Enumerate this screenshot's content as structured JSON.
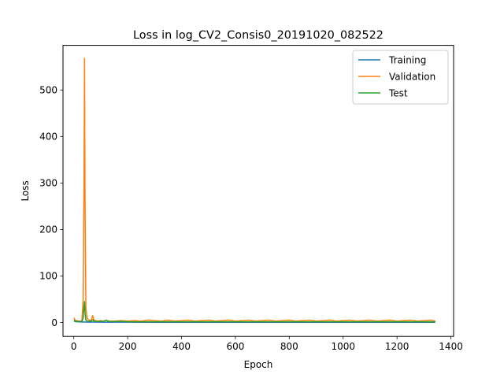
{
  "chart_data": {
    "type": "line",
    "title": "Loss in log_CV2_Consis0_20191020_082522",
    "xlabel": "Epoch",
    "ylabel": "Loss",
    "xlim": [
      -40,
      1410
    ],
    "ylim": [
      -30,
      596
    ],
    "xticks": [
      0,
      200,
      400,
      600,
      800,
      1000,
      1200,
      1400
    ],
    "yticks": [
      0,
      100,
      200,
      300,
      400,
      500
    ],
    "grid": false,
    "legend_position": "top-right",
    "series": [
      {
        "name": "Training",
        "color": "#1f77b4",
        "x": [
          1,
          5,
          10,
          20,
          30,
          35,
          38,
          40,
          42,
          45,
          50,
          60,
          70,
          80,
          100,
          150,
          200,
          300,
          400,
          500,
          600,
          700,
          800,
          900,
          1000,
          1100,
          1200,
          1300,
          1342
        ],
        "y": [
          3,
          2,
          1.5,
          1.2,
          1,
          1,
          1,
          1,
          1,
          0.9,
          0.9,
          0.8,
          0.8,
          0.8,
          0.7,
          0.6,
          0.6,
          0.5,
          0.5,
          0.5,
          0.5,
          0.5,
          0.5,
          0.5,
          0.5,
          0.5,
          0.5,
          0.5,
          0.5
        ]
      },
      {
        "name": "Validation",
        "color": "#ff7f0e",
        "x": [
          1,
          5,
          10,
          20,
          30,
          35,
          38,
          40,
          42,
          45,
          50,
          55,
          60,
          65,
          70,
          75,
          80,
          90,
          100,
          110,
          120,
          130,
          150,
          175,
          200,
          225,
          250,
          275,
          300,
          325,
          350,
          375,
          400,
          425,
          450,
          475,
          500,
          525,
          550,
          575,
          600,
          625,
          650,
          675,
          700,
          725,
          750,
          775,
          800,
          825,
          850,
          875,
          900,
          925,
          950,
          975,
          1000,
          1025,
          1050,
          1075,
          1100,
          1125,
          1150,
          1175,
          1200,
          1225,
          1250,
          1275,
          1300,
          1325,
          1342
        ],
        "y": [
          10,
          5,
          4,
          3,
          3,
          50,
          300,
          568,
          250,
          30,
          8,
          6,
          5,
          4,
          15,
          5,
          4,
          3,
          4,
          3,
          5,
          3,
          3,
          4,
          3,
          4,
          3,
          5,
          4,
          3,
          5,
          3,
          4,
          5,
          3,
          4,
          5,
          3,
          4,
          5,
          3,
          4,
          5,
          3,
          4,
          5,
          3,
          4,
          5,
          3,
          4,
          5,
          3,
          4,
          5,
          3,
          4,
          5,
          3,
          4,
          5,
          3,
          4,
          5,
          3,
          4,
          5,
          3,
          4,
          5,
          3
        ]
      },
      {
        "name": "Test",
        "color": "#2ca02c",
        "x": [
          1,
          5,
          10,
          20,
          30,
          35,
          38,
          40,
          42,
          45,
          50,
          55,
          60,
          65,
          70,
          75,
          80,
          90,
          100,
          110,
          120,
          130,
          150,
          175,
          200,
          250,
          300,
          350,
          400,
          450,
          500,
          550,
          600,
          650,
          700,
          750,
          800,
          850,
          900,
          950,
          1000,
          1050,
          1100,
          1150,
          1200,
          1250,
          1300,
          1342
        ],
        "y": [
          5,
          3,
          2.5,
          2,
          2,
          10,
          35,
          45,
          20,
          5,
          3,
          2.5,
          3,
          2.5,
          6,
          3,
          2.5,
          2,
          3,
          2,
          5,
          2,
          2,
          2.5,
          1.5,
          1.5,
          1.5,
          1.5,
          1.5,
          1.5,
          1.5,
          1.5,
          1.5,
          1.5,
          1.5,
          1.5,
          1.5,
          1.5,
          1.5,
          1.5,
          1.5,
          1.5,
          1.5,
          1.5,
          1.5,
          1.5,
          1.5,
          1.5
        ]
      }
    ]
  }
}
